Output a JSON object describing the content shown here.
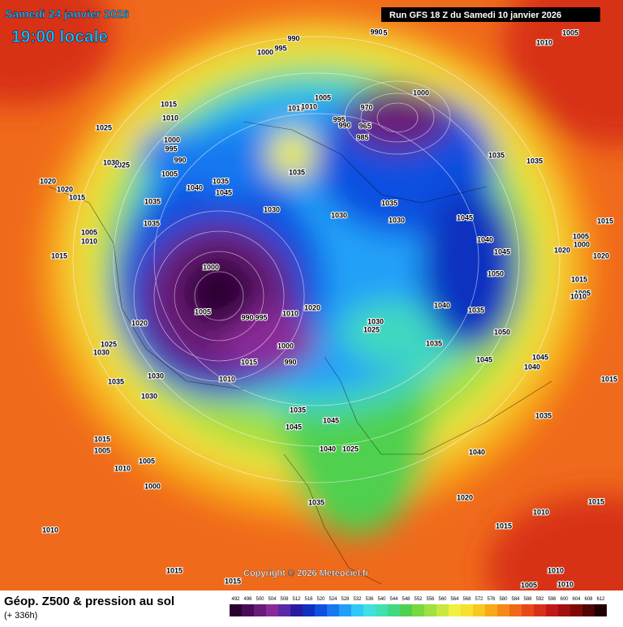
{
  "header": {
    "date": "Samedi 24 janvier 2026",
    "time": "19:00 locale",
    "run": "Run GFS 18 Z du Samedi 10 janvier 2026"
  },
  "copyright": "Copyright © 2026 Meteociel.fr",
  "footer": {
    "title": "Géop. Z500 & pression au sol",
    "lead": "(+ 336h)"
  },
  "scale": {
    "values": [
      492,
      496,
      500,
      504,
      508,
      512,
      516,
      520,
      524,
      528,
      532,
      536,
      540,
      544,
      548,
      552,
      556,
      560,
      564,
      568,
      572,
      576,
      580,
      584,
      588,
      592,
      596,
      600,
      604,
      608,
      612
    ],
    "colors": [
      "#2a0030",
      "#4a0a5a",
      "#6a1a78",
      "#8a2a98",
      "#5a2aa8",
      "#2a1aa0",
      "#1030c0",
      "#1050e0",
      "#1878f0",
      "#20a0f8",
      "#30c8f8",
      "#40e0e0",
      "#40e0b0",
      "#40d880",
      "#50d050",
      "#78d840",
      "#a0e040",
      "#c8e840",
      "#f0f040",
      "#f8e030",
      "#f8c820",
      "#f8a818",
      "#f88818",
      "#f06818",
      "#e84818",
      "#d83018",
      "#c01818",
      "#a01010",
      "#800808",
      "#500404",
      "#200000"
    ]
  },
  "pressure_labels": [
    1000,
    1005,
    990,
    995,
    1010,
    1020,
    1015,
    1010,
    1000,
    990,
    1030,
    1030,
    1035,
    1020,
    1025,
    1030,
    1015,
    1005,
    1010,
    1005,
    1000,
    1010,
    1015,
    1015,
    1035,
    1045,
    1045,
    1040,
    1025,
    1035,
    1040,
    1020,
    1015,
    1010,
    1015,
    1005,
    1010,
    1010,
    1035,
    1015,
    1040,
    1045,
    1045,
    1050,
    1035,
    1040,
    1035,
    1030,
    1025,
    1050,
    1045,
    1040,
    1045,
    1035,
    1030,
    1030,
    1030,
    1035,
    1035,
    1035,
    1040,
    1045,
    1035,
    1005,
    990,
    995,
    1000,
    1010,
    1015,
    1025,
    1025,
    1030,
    1020,
    1020,
    1015,
    1005,
    1010,
    1015,
    990,
    1000,
    995,
    1015,
    1010,
    1005,
    995,
    990,
    970,
    965,
    985,
    1000,
    995,
    990,
    1035,
    1035,
    1010,
    1005,
    1015,
    1005,
    1000,
    1020,
    1020,
    1015,
    1005,
    1010
  ]
}
